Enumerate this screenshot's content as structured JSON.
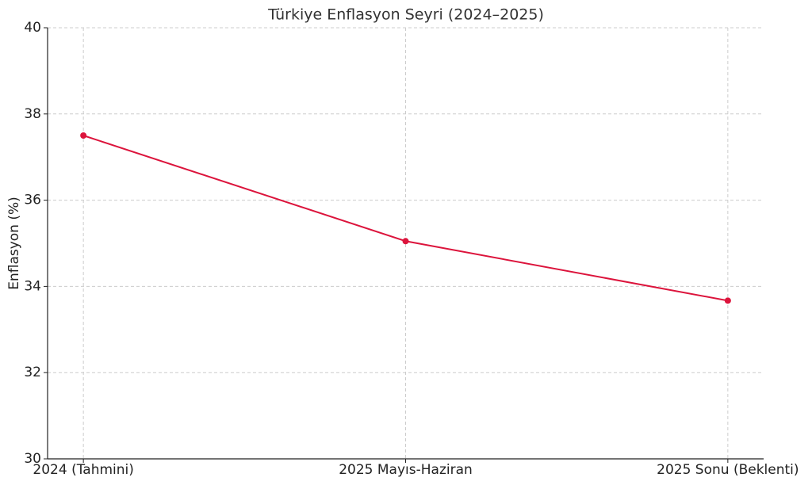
{
  "chart_data": {
    "type": "line",
    "title": "Türkiye Enflasyon Seyri (2024–2025)",
    "y_label": "Enflasyon (%)",
    "categories": [
      "2024 (Tahmini)",
      "2025 Mayıs-Haziran",
      "2025 Sonu (Beklenti)"
    ],
    "series": [
      {
        "name": "Enflasyon",
        "color": "#dc143c",
        "values": [
          37.5,
          35.05,
          33.67
        ]
      }
    ],
    "ylim": [
      30,
      40
    ],
    "yticks": [
      30,
      32,
      34,
      36,
      38,
      40
    ],
    "grid": true
  }
}
